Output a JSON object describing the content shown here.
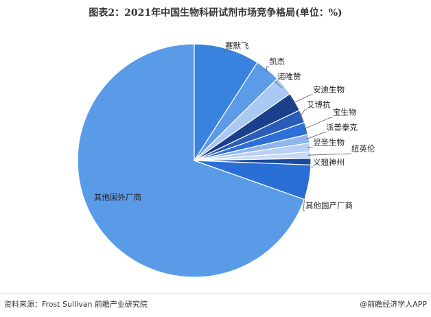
{
  "chart_data": {
    "type": "pie",
    "title": "图表2：2021年中国生物科研试剂市场竞争格局(单位：%)",
    "categories": [
      "赛默飞",
      "凯杰",
      "诺唯赞",
      "安迪生物",
      "艾博抗",
      "宝生物",
      "派普泰克",
      "翌圣生物",
      "纽英伦",
      "义翘神州",
      "其他国产厂商",
      "其他国外厂商"
    ],
    "values": [
      9.1,
      3.5,
      2.7,
      2.6,
      1.8,
      1.7,
      1.2,
      1.2,
      0.9,
      0.9,
      4.8,
      69.6
    ],
    "colors": [
      "#3a82e0",
      "#5b9be8",
      "#a9c8f2",
      "#1c3f8c",
      "#2a5cb8",
      "#2e6fd8",
      "#8fb5ee",
      "#b8d0f4",
      "#c8daf6",
      "#1a4aa0",
      "#2a6fd6",
      "#5a9be8"
    ],
    "source": "资料来源：Frost Sullivan 前瞻产业研究院",
    "credit": "@前瞻经济学人APP"
  }
}
